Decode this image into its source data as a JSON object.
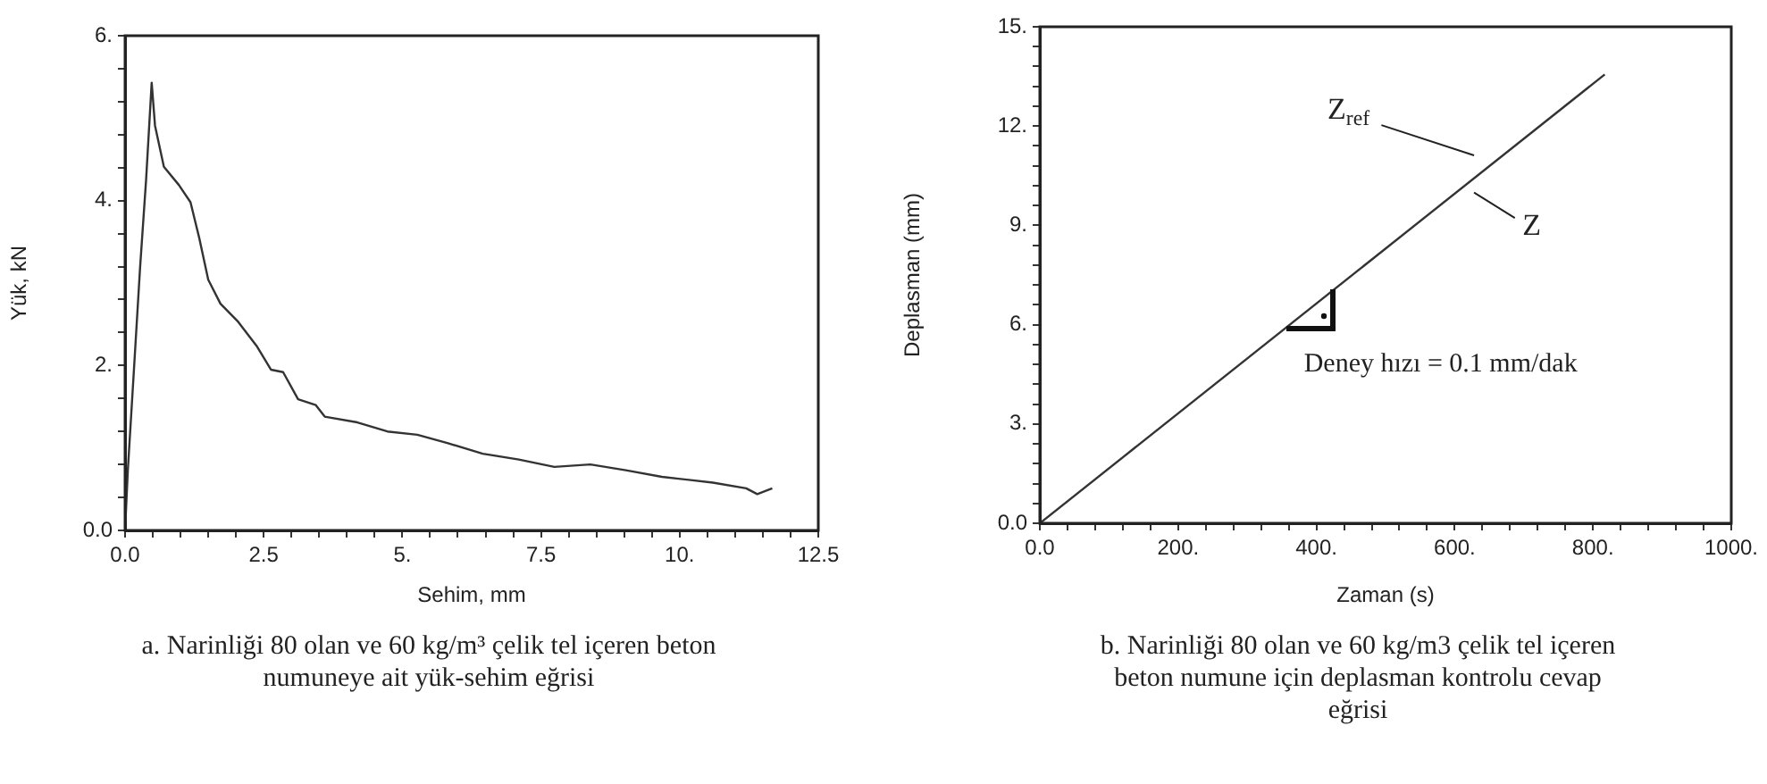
{
  "chart_data": [
    {
      "type": "line",
      "title": "a. Narinliği 80 olan ve 60 kg/m³ çelik tel içeren beton numuneye ait yük-sehim eğrisi",
      "xlabel": "Sehim, mm",
      "ylabel": "Yük, kN",
      "grid": false,
      "legend": false,
      "marker": "none",
      "line_style": "solid",
      "xlim": [
        0,
        12.5
      ],
      "ylim": [
        0,
        6
      ],
      "xticks": [
        {
          "value": 0,
          "label": "0.0"
        },
        {
          "value": 0.5,
          "label": null
        },
        {
          "value": 1,
          "label": null
        },
        {
          "value": 1.5,
          "label": null
        },
        {
          "value": 2,
          "label": null
        },
        {
          "value": 2.5,
          "label": "2.5"
        },
        {
          "value": 3,
          "label": null
        },
        {
          "value": 3.5,
          "label": null
        },
        {
          "value": 4,
          "label": null
        },
        {
          "value": 4.5,
          "label": null
        },
        {
          "value": 5,
          "label": "5."
        },
        {
          "value": 5.5,
          "label": null
        },
        {
          "value": 6,
          "label": null
        },
        {
          "value": 6.5,
          "label": null
        },
        {
          "value": 7,
          "label": null
        },
        {
          "value": 7.5,
          "label": "7.5"
        },
        {
          "value": 8,
          "label": null
        },
        {
          "value": 8.5,
          "label": null
        },
        {
          "value": 9,
          "label": null
        },
        {
          "value": 9.5,
          "label": null
        },
        {
          "value": 10,
          "label": "10."
        },
        {
          "value": 10.5,
          "label": null
        },
        {
          "value": 11,
          "label": null
        },
        {
          "value": 11.5,
          "label": null
        },
        {
          "value": 12,
          "label": null
        },
        {
          "value": 12.5,
          "label": "12.5"
        }
      ],
      "yticks": [
        {
          "value": 0,
          "label": "0.0"
        },
        {
          "value": 0.4,
          "label": null
        },
        {
          "value": 0.8,
          "label": null
        },
        {
          "value": 1.2,
          "label": null
        },
        {
          "value": 1.6,
          "label": null
        },
        {
          "value": 2,
          "label": "2."
        },
        {
          "value": 2.4,
          "label": null
        },
        {
          "value": 2.8,
          "label": null
        },
        {
          "value": 3.2,
          "label": null
        },
        {
          "value": 3.6,
          "label": null
        },
        {
          "value": 4,
          "label": "4."
        },
        {
          "value": 4.4,
          "label": null
        },
        {
          "value": 4.8,
          "label": null
        },
        {
          "value": 5.2,
          "label": null
        },
        {
          "value": 5.6,
          "label": null
        },
        {
          "value": 6,
          "label": "6."
        }
      ],
      "series": [
        {
          "color": "#333333",
          "x": [
            0,
            0.05,
            0.16,
            0.27,
            0.38,
            0.48,
            0.54,
            0.7,
            0.97,
            1.18,
            1.34,
            1.5,
            1.72,
            2.04,
            2.37,
            2.63,
            2.85,
            3.12,
            3.44,
            3.6,
            4.19,
            4.73,
            5.27,
            5.81,
            6.45,
            7.1,
            7.74,
            8.39,
            9.03,
            9.68,
            10.2,
            10.6,
            11.2,
            11.4,
            11.67
          ],
          "values": [
            0,
            0.73,
            1.95,
            3.18,
            4.26,
            5.43,
            4.91,
            4.41,
            4.19,
            3.98,
            3.54,
            3.04,
            2.75,
            2.53,
            2.24,
            1.95,
            1.92,
            1.59,
            1.52,
            1.38,
            1.31,
            1.2,
            1.16,
            1.06,
            0.93,
            0.86,
            0.77,
            0.8,
            0.73,
            0.65,
            0.61,
            0.58,
            0.51,
            0.44,
            0.51
          ]
        }
      ]
    },
    {
      "type": "line",
      "title": "b. Narinliği 80 olan ve 60 kg/m3 çelik tel içeren beton numune için deplasman kontrolu cevap eğrisi",
      "xlabel": "Zaman (s)",
      "ylabel": "Deplasman (mm)",
      "grid": false,
      "legend": false,
      "marker": "none",
      "line_style": "solid",
      "xlim": [
        0,
        1000
      ],
      "ylim": [
        0,
        15
      ],
      "xticks": [
        {
          "value": 0,
          "label": "0.0"
        },
        {
          "value": 40,
          "label": null
        },
        {
          "value": 80,
          "label": null
        },
        {
          "value": 120,
          "label": null
        },
        {
          "value": 160,
          "label": null
        },
        {
          "value": 200,
          "label": "200."
        },
        {
          "value": 240,
          "label": null
        },
        {
          "value": 280,
          "label": null
        },
        {
          "value": 320,
          "label": null
        },
        {
          "value": 360,
          "label": null
        },
        {
          "value": 400,
          "label": "400."
        },
        {
          "value": 440,
          "label": null
        },
        {
          "value": 480,
          "label": null
        },
        {
          "value": 520,
          "label": null
        },
        {
          "value": 560,
          "label": null
        },
        {
          "value": 600,
          "label": "600."
        },
        {
          "value": 640,
          "label": null
        },
        {
          "value": 680,
          "label": null
        },
        {
          "value": 720,
          "label": null
        },
        {
          "value": 760,
          "label": null
        },
        {
          "value": 800,
          "label": "800."
        },
        {
          "value": 840,
          "label": null
        },
        {
          "value": 880,
          "label": null
        },
        {
          "value": 920,
          "label": null
        },
        {
          "value": 960,
          "label": null
        },
        {
          "value": 1000,
          "label": "1000."
        }
      ],
      "yticks": [
        {
          "value": 0,
          "label": "0.0"
        },
        {
          "value": 0.6,
          "label": null
        },
        {
          "value": 1.2,
          "label": null
        },
        {
          "value": 1.8,
          "label": null
        },
        {
          "value": 2.4,
          "label": null
        },
        {
          "value": 3,
          "label": "3."
        },
        {
          "value": 3.6,
          "label": null
        },
        {
          "value": 4.2,
          "label": null
        },
        {
          "value": 4.8,
          "label": null
        },
        {
          "value": 5.4,
          "label": null
        },
        {
          "value": 6,
          "label": "6."
        },
        {
          "value": 6.6,
          "label": null
        },
        {
          "value": 7.2,
          "label": null
        },
        {
          "value": 7.8,
          "label": null
        },
        {
          "value": 8.4,
          "label": null
        },
        {
          "value": 9,
          "label": "9."
        },
        {
          "value": 9.6,
          "label": null
        },
        {
          "value": 10.2,
          "label": null
        },
        {
          "value": 10.8,
          "label": null
        },
        {
          "value": 11.4,
          "label": null
        },
        {
          "value": 12,
          "label": "12."
        },
        {
          "value": 12.6,
          "label": null
        },
        {
          "value": 13.2,
          "label": null
        },
        {
          "value": 13.8,
          "label": null
        },
        {
          "value": 14.4,
          "label": null
        },
        {
          "value": 15,
          "label": "15."
        }
      ],
      "series": [
        {
          "color": "#333333",
          "x": [
            0,
            817
          ],
          "values": [
            0,
            13.56
          ]
        }
      ],
      "annotations": [
        "Z$_{ref}$",
        "Z",
        "Deney hızı = 0.1 mm/dak"
      ]
    }
  ]
}
